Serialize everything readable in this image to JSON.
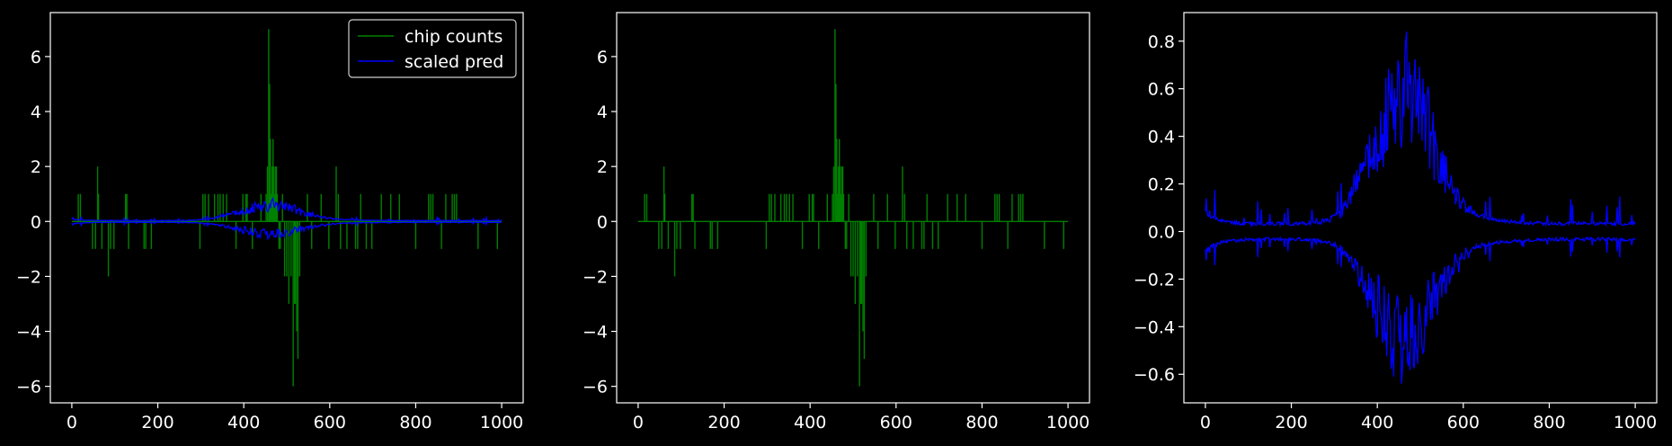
{
  "colors": {
    "background": "#000000",
    "axes": "#ffffff",
    "counts": "#008000",
    "pred": "#0000ff"
  },
  "chart_data": [
    {
      "type": "line",
      "xlim": [
        -50,
        1050
      ],
      "ylim": [
        -6.6,
        7.6
      ],
      "xticks": [
        0,
        200,
        400,
        600,
        800,
        1000
      ],
      "yticks": [
        -6,
        -4,
        -2,
        0,
        2,
        4,
        6
      ],
      "legend": {
        "placement": "top-right",
        "entries": [
          "chip counts",
          "scaled pred"
        ]
      },
      "grid": false,
      "series": [
        {
          "name": "chip counts",
          "color": "#008000",
          "kind": "impulses",
          "x": [
            15,
            20,
            48,
            55,
            60,
            62,
            70,
            85,
            90,
            98,
            125,
            128,
            132,
            168,
            172,
            185,
            298,
            305,
            310,
            318,
            332,
            340,
            345,
            352,
            360,
            382,
            398,
            405,
            408,
            420,
            440,
            452,
            455,
            458,
            460,
            462,
            464,
            466,
            468,
            470,
            472,
            474,
            476,
            478,
            482,
            485,
            490,
            495,
            500,
            505,
            510,
            515,
            518,
            520,
            523,
            526,
            530,
            548,
            558,
            580,
            598,
            615,
            620,
            625,
            640,
            660,
            665,
            672,
            685,
            698,
            720,
            742,
            762,
            800,
            830,
            835,
            840,
            860,
            870,
            885,
            890,
            895,
            945,
            990
          ],
          "y": [
            1,
            1,
            -1,
            -1,
            2,
            1,
            -1,
            -2,
            -1,
            -1,
            1,
            1,
            -1,
            -1,
            -1,
            -1,
            -1,
            1,
            1,
            1,
            1,
            1,
            1,
            1,
            1,
            -1,
            1,
            1,
            1,
            -1,
            1,
            1,
            2,
            7,
            5,
            3,
            1,
            2,
            3,
            2,
            1,
            2,
            2,
            1,
            -1,
            -1,
            1,
            -2,
            -2,
            -3,
            -2,
            -6,
            -3,
            -3,
            -4,
            -5,
            -2,
            1,
            -1,
            1,
            -1,
            2,
            1,
            -1,
            -1,
            -1,
            -1,
            1,
            -1,
            -1,
            1,
            1,
            1,
            -1,
            1,
            1,
            1,
            -1,
            1,
            1,
            1,
            1,
            -1,
            -1
          ]
        },
        {
          "name": "scaled pred",
          "color": "#0000ff",
          "kind": "mirrored-noise",
          "x_range": [
            0,
            1000
          ],
          "peak_x": 460,
          "upper_peak": 0.84,
          "lower_peak": -0.64,
          "scale": 1.0
        }
      ]
    },
    {
      "type": "line",
      "xlim": [
        -50,
        1050
      ],
      "ylim": [
        -6.6,
        7.6
      ],
      "xticks": [
        0,
        200,
        400,
        600,
        800,
        1000
      ],
      "yticks": [
        -6,
        -4,
        -2,
        0,
        2,
        4,
        6
      ],
      "grid": false,
      "series": [
        {
          "color": "#008000",
          "kind": "impulses",
          "same_as": "chip counts"
        }
      ]
    },
    {
      "type": "line",
      "xlim": [
        -50,
        1050
      ],
      "ylim": [
        -0.72,
        0.92
      ],
      "xticks": [
        0,
        200,
        400,
        600,
        800,
        1000
      ],
      "yticks": [
        -0.6,
        -0.4,
        -0.2,
        0.0,
        0.2,
        0.4,
        0.6,
        0.8
      ],
      "ytick_labels": [
        "−0.6",
        "−0.4",
        "−0.2",
        "0.0",
        "0.2",
        "0.4",
        "0.6",
        "0.8"
      ],
      "grid": false,
      "series": [
        {
          "color": "#0000ff",
          "kind": "mirrored-noise",
          "x_range": [
            0,
            1000
          ],
          "peak_x": 460,
          "upper_peak": 0.84,
          "lower_peak": -0.64,
          "scale": 1.0
        }
      ]
    }
  ]
}
